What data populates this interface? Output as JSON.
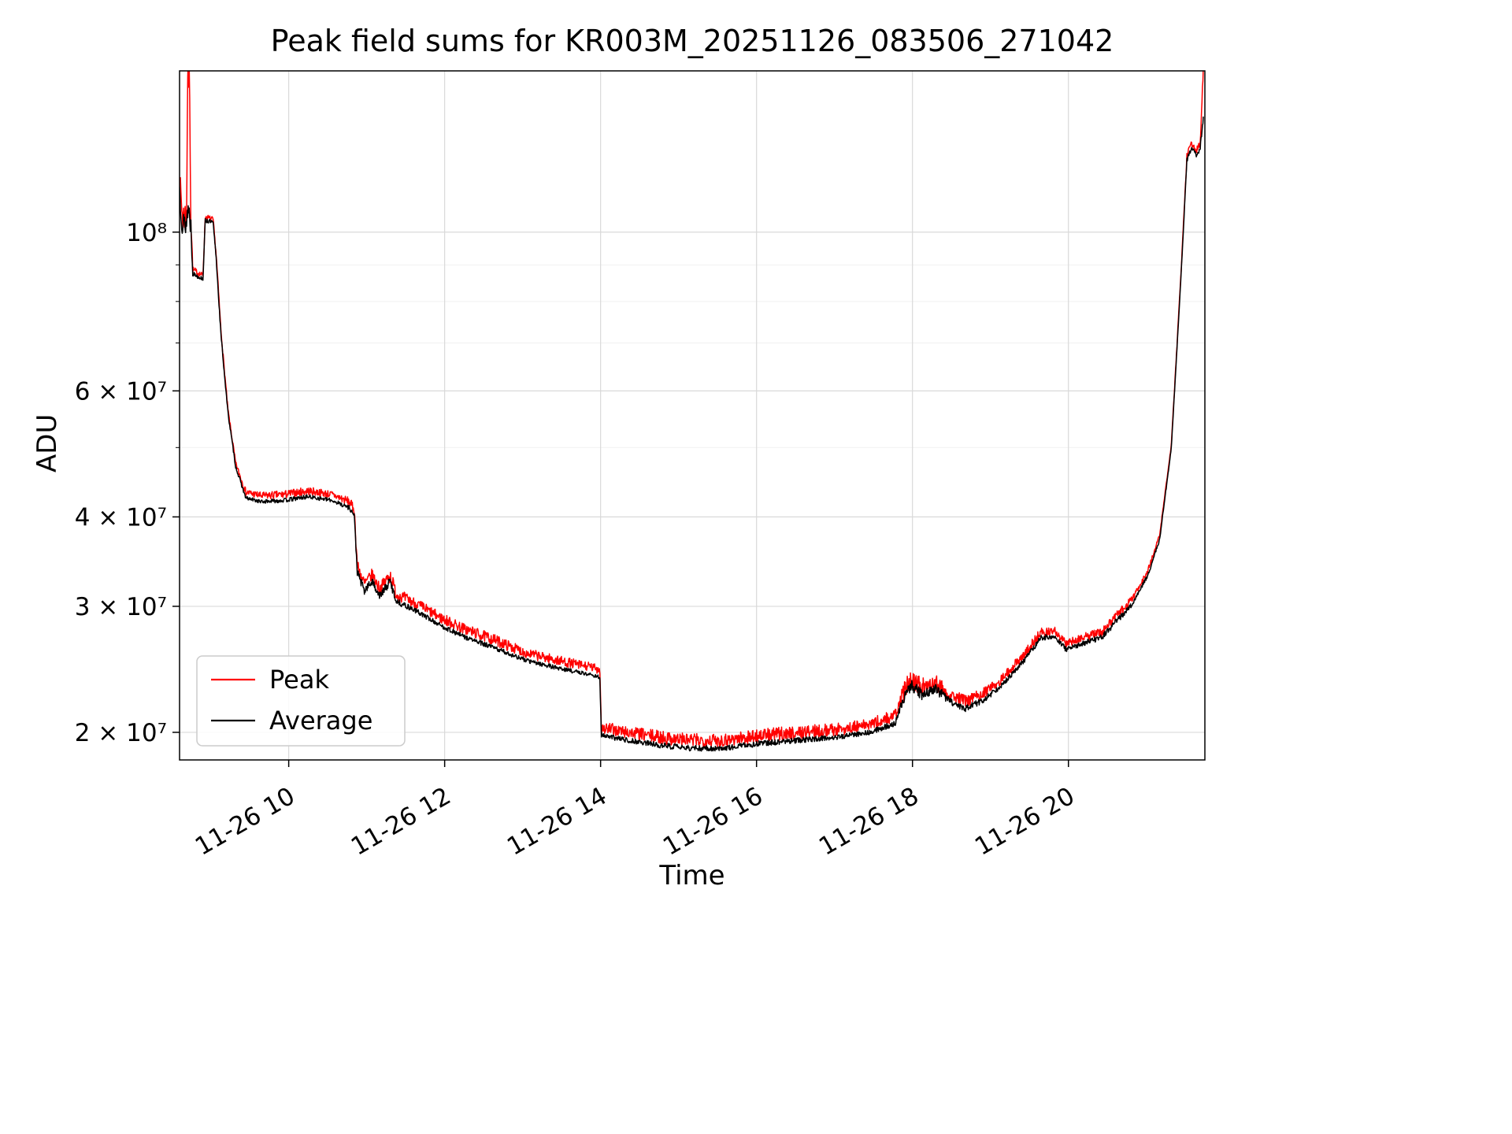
{
  "figure": {
    "background": "#ffffff"
  },
  "chart_data": {
    "type": "line",
    "title": "Peak field sums for KR003M_20251126_083506_271042",
    "xlabel": "Time",
    "ylabel": "ADU",
    "x_axis_note": "x values are hours of day on 2025-11-26",
    "xlim": [
      8.6,
      21.75
    ],
    "ylim": [
      18300000.0,
      168000000.0
    ],
    "yscale": "log",
    "grid": true,
    "legend": {
      "position": "lower left",
      "entries": [
        "Peak",
        "Average"
      ]
    },
    "yticks": [
      {
        "value": 20000000.0,
        "label": "2 × 10⁷"
      },
      {
        "value": 30000000.0,
        "label": "3 × 10⁷"
      },
      {
        "value": 40000000.0,
        "label": "4 × 10⁷"
      },
      {
        "value": 60000000.0,
        "label": "6 × 10⁷"
      },
      {
        "value": 100000000.0,
        "label": "10⁸"
      }
    ],
    "y_minor_ticks": [
      50000000.0,
      70000000.0,
      80000000.0,
      90000000.0
    ],
    "xticks": [
      {
        "value": 10,
        "label": "11-26 10"
      },
      {
        "value": 12,
        "label": "11-26 12"
      },
      {
        "value": 14,
        "label": "11-26 14"
      },
      {
        "value": 16,
        "label": "11-26 16"
      },
      {
        "value": 18,
        "label": "11-26 18"
      },
      {
        "value": 20,
        "label": "11-26 20"
      }
    ],
    "series": [
      {
        "name": "Peak",
        "color": "#ff0000",
        "seed": 7,
        "line_width": 1.5,
        "anchors": [
          [
            8.6,
            117000000.0,
            0.05
          ],
          [
            8.64,
            105000000.0,
            0.06
          ],
          [
            8.69,
            106000000.0,
            0.05
          ],
          [
            8.705,
            168000000.0,
            0.05
          ],
          [
            8.73,
            160000000.0,
            0.06
          ],
          [
            8.745,
            105000000.0,
            0.05
          ],
          [
            8.77,
            88500000.0,
            0.012
          ],
          [
            8.9,
            87000000.0,
            0.008
          ],
          [
            8.93,
            105000000.0,
            0.01
          ],
          [
            9.03,
            104000000.0,
            0.01
          ],
          [
            9.07,
            93000000.0,
            0.01
          ],
          [
            9.13,
            73000000.0,
            0.009
          ],
          [
            9.22,
            56500000.0,
            0.008
          ],
          [
            9.32,
            47500000.0,
            0.008
          ],
          [
            9.45,
            43300000.0,
            0.012
          ],
          [
            9.65,
            42800000.0,
            0.012
          ],
          [
            9.95,
            43000000.0,
            0.013
          ],
          [
            10.25,
            43500000.0,
            0.013
          ],
          [
            10.55,
            43000000.0,
            0.012
          ],
          [
            10.78,
            42000000.0,
            0.014
          ],
          [
            10.84,
            41000000.0,
            0.015
          ],
          [
            10.88,
            34200000.0,
            0.02
          ],
          [
            10.97,
            32200000.0,
            0.025
          ],
          [
            11.07,
            33200000.0,
            0.02
          ],
          [
            11.17,
            31700000.0,
            0.02
          ],
          [
            11.3,
            33200000.0,
            0.025
          ],
          [
            11.38,
            31200000.0,
            0.02
          ],
          [
            11.65,
            30200000.0,
            0.018
          ],
          [
            11.95,
            28900000.0,
            0.018
          ],
          [
            12.25,
            27900000.0,
            0.018
          ],
          [
            12.65,
            26900000.0,
            0.018
          ],
          [
            13.05,
            25800000.0,
            0.016
          ],
          [
            13.45,
            25200000.0,
            0.016
          ],
          [
            13.85,
            24700000.0,
            0.015
          ],
          [
            13.99,
            24500000.0,
            0.015
          ],
          [
            14.01,
            20300000.0,
            0.02
          ],
          [
            14.35,
            20000000.0,
            0.02
          ],
          [
            14.75,
            19700000.0,
            0.022
          ],
          [
            15.15,
            19500000.0,
            0.022
          ],
          [
            15.55,
            19500000.0,
            0.022
          ],
          [
            16.05,
            19800000.0,
            0.022
          ],
          [
            16.55,
            20000000.0,
            0.022
          ],
          [
            17.05,
            20200000.0,
            0.02
          ],
          [
            17.45,
            20500000.0,
            0.02
          ],
          [
            17.78,
            21100000.0,
            0.022
          ],
          [
            17.88,
            22700000.0,
            0.028
          ],
          [
            17.98,
            23800000.0,
            0.03
          ],
          [
            18.12,
            23100000.0,
            0.03
          ],
          [
            18.28,
            23600000.0,
            0.03
          ],
          [
            18.48,
            22600000.0,
            0.022
          ],
          [
            18.68,
            22100000.0,
            0.018
          ],
          [
            18.88,
            22600000.0,
            0.018
          ],
          [
            19.12,
            23600000.0,
            0.015
          ],
          [
            19.42,
            25600000.0,
            0.015
          ],
          [
            19.65,
            27600000.0,
            0.016
          ],
          [
            19.82,
            27800000.0,
            0.013
          ],
          [
            19.97,
            26600000.0,
            0.013
          ],
          [
            20.17,
            27100000.0,
            0.013
          ],
          [
            20.42,
            27600000.0,
            0.016
          ],
          [
            20.62,
            29100000.0,
            0.015
          ],
          [
            20.82,
            30700000.0,
            0.012
          ],
          [
            21.02,
            33700000.0,
            0.008
          ],
          [
            21.17,
            37700000.0,
            0.005
          ],
          [
            21.32,
            50500000.0,
            0.004
          ],
          [
            21.44,
            86000000.0,
            0.005
          ],
          [
            21.52,
            128000000.0,
            0.01
          ],
          [
            21.58,
            133000000.0,
            0.01
          ],
          [
            21.64,
            130000000.0,
            0.01
          ],
          [
            21.69,
            133000000.0,
            0.01
          ],
          [
            21.73,
            170000000.0,
            0.012
          ]
        ]
      },
      {
        "name": "Average",
        "color": "#000000",
        "seed": 13,
        "line_width": 1.5,
        "anchors": [
          [
            8.6,
            115000000.0,
            0.04
          ],
          [
            8.64,
            102000000.0,
            0.05
          ],
          [
            8.69,
            103000000.0,
            0.04
          ],
          [
            8.705,
            108000000.0,
            0.04
          ],
          [
            8.73,
            106000000.0,
            0.05
          ],
          [
            8.745,
            102000000.0,
            0.04
          ],
          [
            8.77,
            87500000.0,
            0.008
          ],
          [
            8.9,
            86000000.0,
            0.006
          ],
          [
            8.93,
            104000000.0,
            0.008
          ],
          [
            9.03,
            103000000.0,
            0.008
          ],
          [
            9.07,
            92000000.0,
            0.008
          ],
          [
            9.13,
            72000000.0,
            0.007
          ],
          [
            9.22,
            56000000.0,
            0.006
          ],
          [
            9.32,
            47000000.0,
            0.005
          ],
          [
            9.45,
            42500000.0,
            0.006
          ],
          [
            9.65,
            42000000.0,
            0.006
          ],
          [
            9.95,
            42200000.0,
            0.007
          ],
          [
            10.25,
            42700000.0,
            0.007
          ],
          [
            10.55,
            42200000.0,
            0.006
          ],
          [
            10.78,
            41200000.0,
            0.008
          ],
          [
            10.84,
            40200000.0,
            0.01
          ],
          [
            10.88,
            33500000.0,
            0.012
          ],
          [
            10.97,
            31500000.0,
            0.015
          ],
          [
            11.07,
            32500000.0,
            0.012
          ],
          [
            11.17,
            31000000.0,
            0.012
          ],
          [
            11.3,
            32500000.0,
            0.015
          ],
          [
            11.38,
            30500000.0,
            0.01
          ],
          [
            11.65,
            29500000.0,
            0.008
          ],
          [
            11.95,
            28200000.0,
            0.008
          ],
          [
            12.25,
            27200000.0,
            0.008
          ],
          [
            12.65,
            26200000.0,
            0.008
          ],
          [
            13.05,
            25200000.0,
            0.007
          ],
          [
            13.45,
            24600000.0,
            0.007
          ],
          [
            13.85,
            24100000.0,
            0.006
          ],
          [
            13.99,
            23900000.0,
            0.006
          ],
          [
            14.01,
            19800000.0,
            0.008
          ],
          [
            14.35,
            19500000.0,
            0.008
          ],
          [
            14.75,
            19200000.0,
            0.009
          ],
          [
            15.15,
            19000000.0,
            0.009
          ],
          [
            15.55,
            19000000.0,
            0.009
          ],
          [
            16.05,
            19300000.0,
            0.009
          ],
          [
            16.55,
            19500000.0,
            0.009
          ],
          [
            17.05,
            19700000.0,
            0.008
          ],
          [
            17.45,
            20000000.0,
            0.008
          ],
          [
            17.78,
            20600000.0,
            0.01
          ],
          [
            17.88,
            22200000.0,
            0.015
          ],
          [
            17.98,
            23300000.0,
            0.018
          ],
          [
            18.12,
            22600000.0,
            0.018
          ],
          [
            18.28,
            23100000.0,
            0.018
          ],
          [
            18.48,
            22100000.0,
            0.012
          ],
          [
            18.68,
            21600000.0,
            0.01
          ],
          [
            18.88,
            22100000.0,
            0.01
          ],
          [
            19.12,
            23100000.0,
            0.008
          ],
          [
            19.42,
            25100000.0,
            0.008
          ],
          [
            19.65,
            27100000.0,
            0.01
          ],
          [
            19.82,
            27300000.0,
            0.008
          ],
          [
            19.97,
            26100000.0,
            0.008
          ],
          [
            20.17,
            26600000.0,
            0.008
          ],
          [
            20.42,
            27100000.0,
            0.01
          ],
          [
            20.62,
            28600000.0,
            0.01
          ],
          [
            20.82,
            30200000.0,
            0.008
          ],
          [
            21.02,
            33200000.0,
            0.006
          ],
          [
            21.17,
            37200000.0,
            0.004
          ],
          [
            21.32,
            50000000.0,
            0.003
          ],
          [
            21.44,
            85000000.0,
            0.004
          ],
          [
            21.52,
            126000000.0,
            0.008
          ],
          [
            21.58,
            131000000.0,
            0.008
          ],
          [
            21.64,
            128000000.0,
            0.008
          ],
          [
            21.69,
            131000000.0,
            0.008
          ],
          [
            21.73,
            145000000.0,
            0.01
          ]
        ]
      }
    ]
  }
}
